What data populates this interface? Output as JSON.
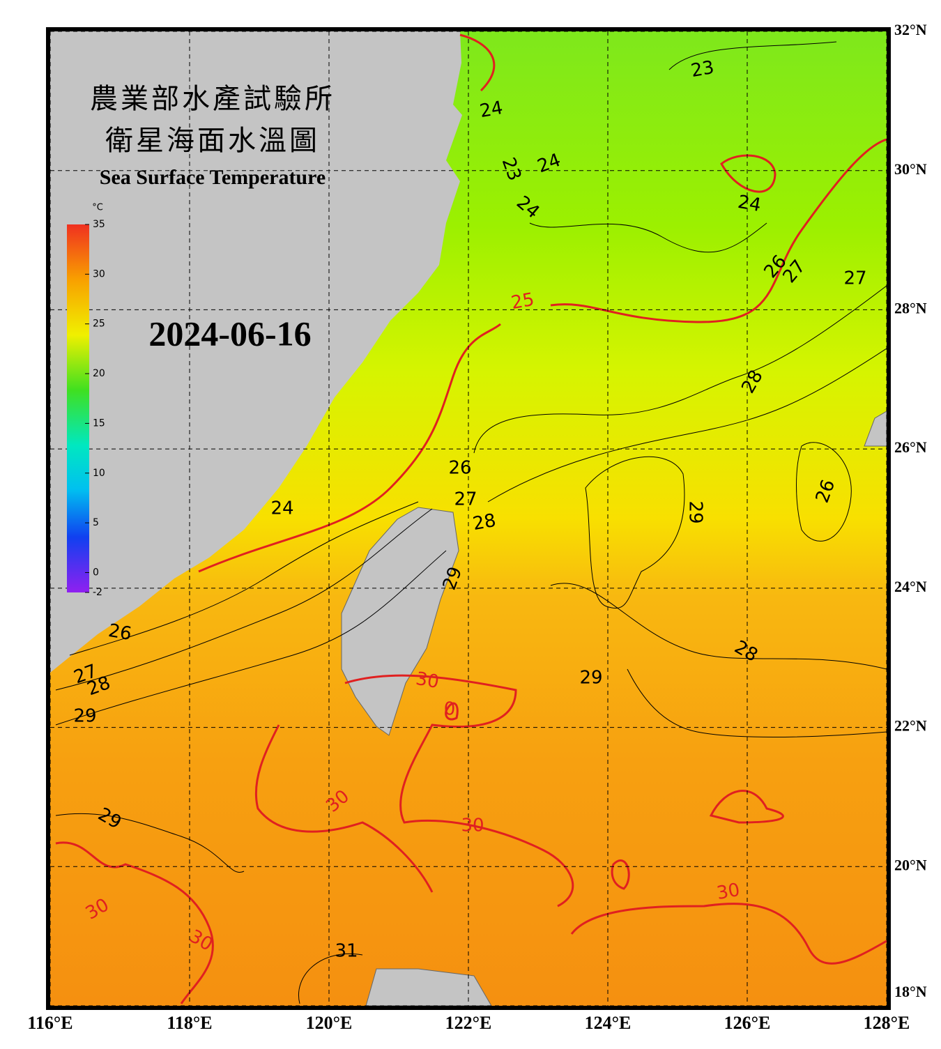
{
  "title_zh_1": "農業部水產試驗所",
  "title_zh_2": "衛星海面水溫圖",
  "title_en": "Sea Surface Temperature",
  "date": "2024-06-16",
  "colorbar": {
    "unit": "°C",
    "lim": [
      -2,
      35
    ],
    "ticks": [
      35,
      30,
      25,
      20,
      15,
      10,
      5,
      0,
      -2
    ]
  },
  "map": {
    "lon_lim": [
      116,
      128
    ],
    "lat_lim": [
      18,
      32
    ],
    "lon_ticks": [
      {
        "value": 116,
        "label": "116°E"
      },
      {
        "value": 118,
        "label": "118°E"
      },
      {
        "value": 120,
        "label": "120°E"
      },
      {
        "value": 122,
        "label": "122°E"
      },
      {
        "value": 124,
        "label": "124°E"
      },
      {
        "value": 126,
        "label": "126°E"
      },
      {
        "value": 128,
        "label": "128°E"
      }
    ],
    "lat_ticks": [
      {
        "value": 32,
        "label": "32°N"
      },
      {
        "value": 30,
        "label": "30°N"
      },
      {
        "value": 28,
        "label": "28°N"
      },
      {
        "value": 26,
        "label": "26°N"
      },
      {
        "value": 24,
        "label": "24°N"
      },
      {
        "value": 22,
        "label": "22°N"
      },
      {
        "value": 20,
        "label": "20°N"
      },
      {
        "value": 18,
        "label": "18°N"
      }
    ]
  },
  "contour_labels": [
    23,
    24,
    23,
    24,
    24,
    24,
    26,
    27,
    27,
    25,
    28,
    26,
    27,
    28,
    26,
    29,
    24,
    29,
    26,
    28,
    27,
    28,
    29,
    29,
    30,
    0,
    30,
    30,
    29,
    30,
    30,
    30,
    31
  ]
}
